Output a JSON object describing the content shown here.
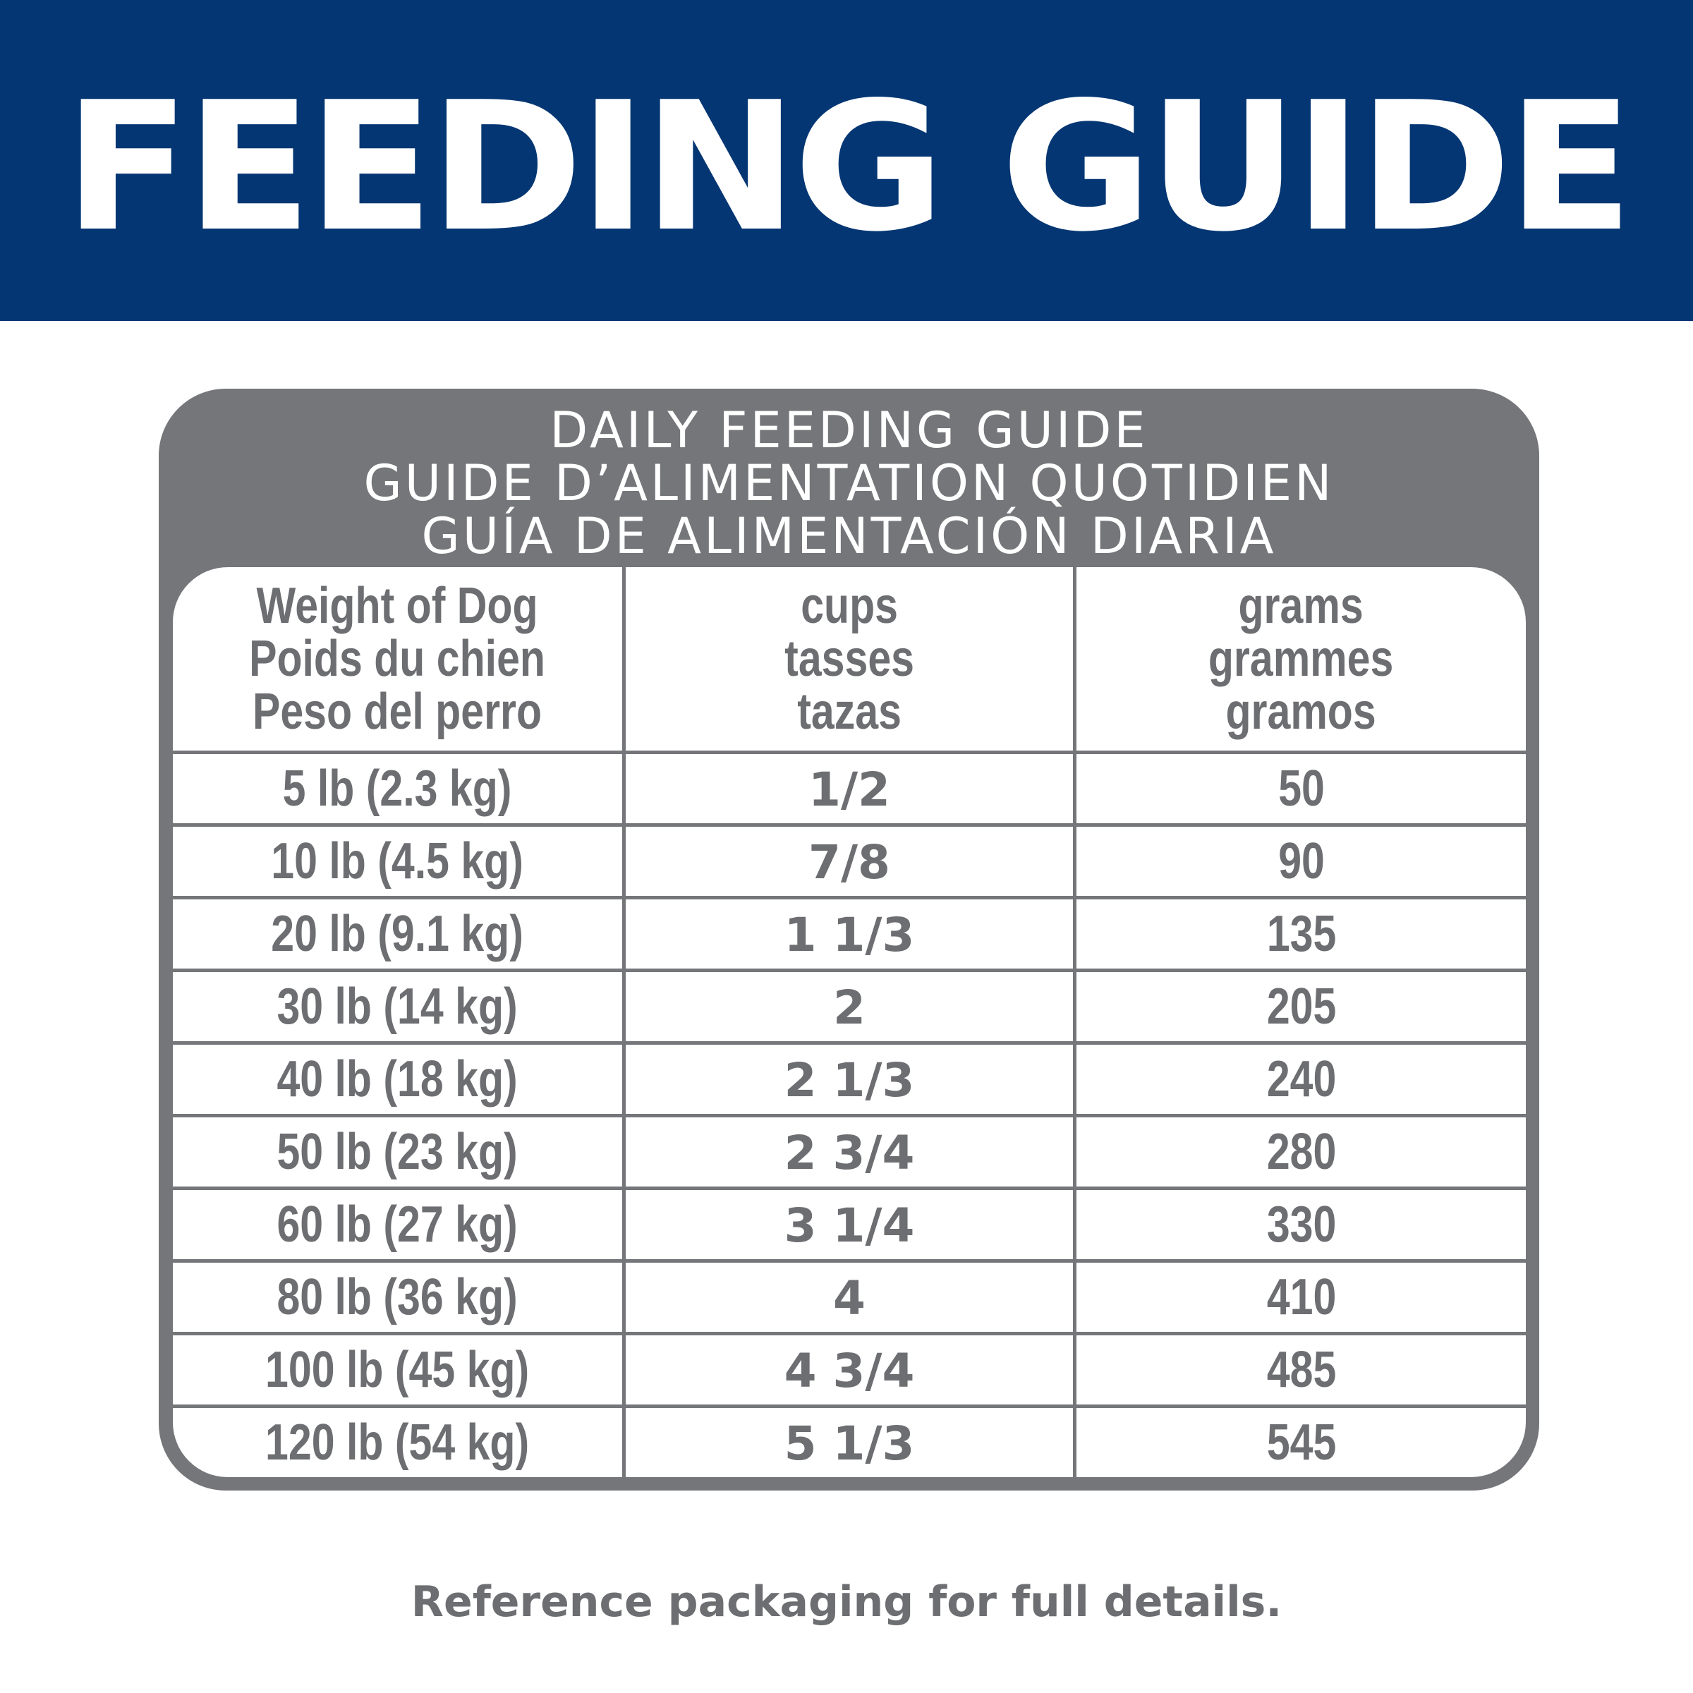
{
  "banner": {
    "title": "FEEDING GUIDE"
  },
  "card": {
    "headings": [
      "DAILY FEEDING GUIDE",
      "GUIDE D’ALIMENTATION QUOTIDIEN",
      "GUÍA DE ALIMENTACIÓN DIARIA"
    ]
  },
  "table": {
    "columns": [
      [
        "Weight of Dog",
        "Poids du chien",
        "Peso del perro"
      ],
      [
        "cups",
        "tasses",
        "tazas"
      ],
      [
        "grams",
        "grammes",
        "gramos"
      ]
    ],
    "rows": [
      [
        "5 lb (2.3 kg)",
        "1/2",
        "50"
      ],
      [
        "10 lb (4.5 kg)",
        "7/8",
        "90"
      ],
      [
        "20 lb (9.1 kg)",
        "1 1/3",
        "135"
      ],
      [
        "30 lb (14 kg)",
        "2",
        "205"
      ],
      [
        "40 lb (18 kg)",
        "2 1/3",
        "240"
      ],
      [
        "50 lb (23 kg)",
        "2 3/4",
        "280"
      ],
      [
        "60 lb (27 kg)",
        "3 1/4",
        "330"
      ],
      [
        "80 lb (36 kg)",
        "4",
        "410"
      ],
      [
        "100 lb (45 kg)",
        "4 3/4",
        "485"
      ],
      [
        "120 lb (54 kg)",
        "5 1/3",
        "545"
      ]
    ]
  },
  "footer": {
    "note": "Reference packaging for full details."
  },
  "colors": {
    "banner": "#043673",
    "frame": "#75767a",
    "text": "#6d6e71"
  }
}
